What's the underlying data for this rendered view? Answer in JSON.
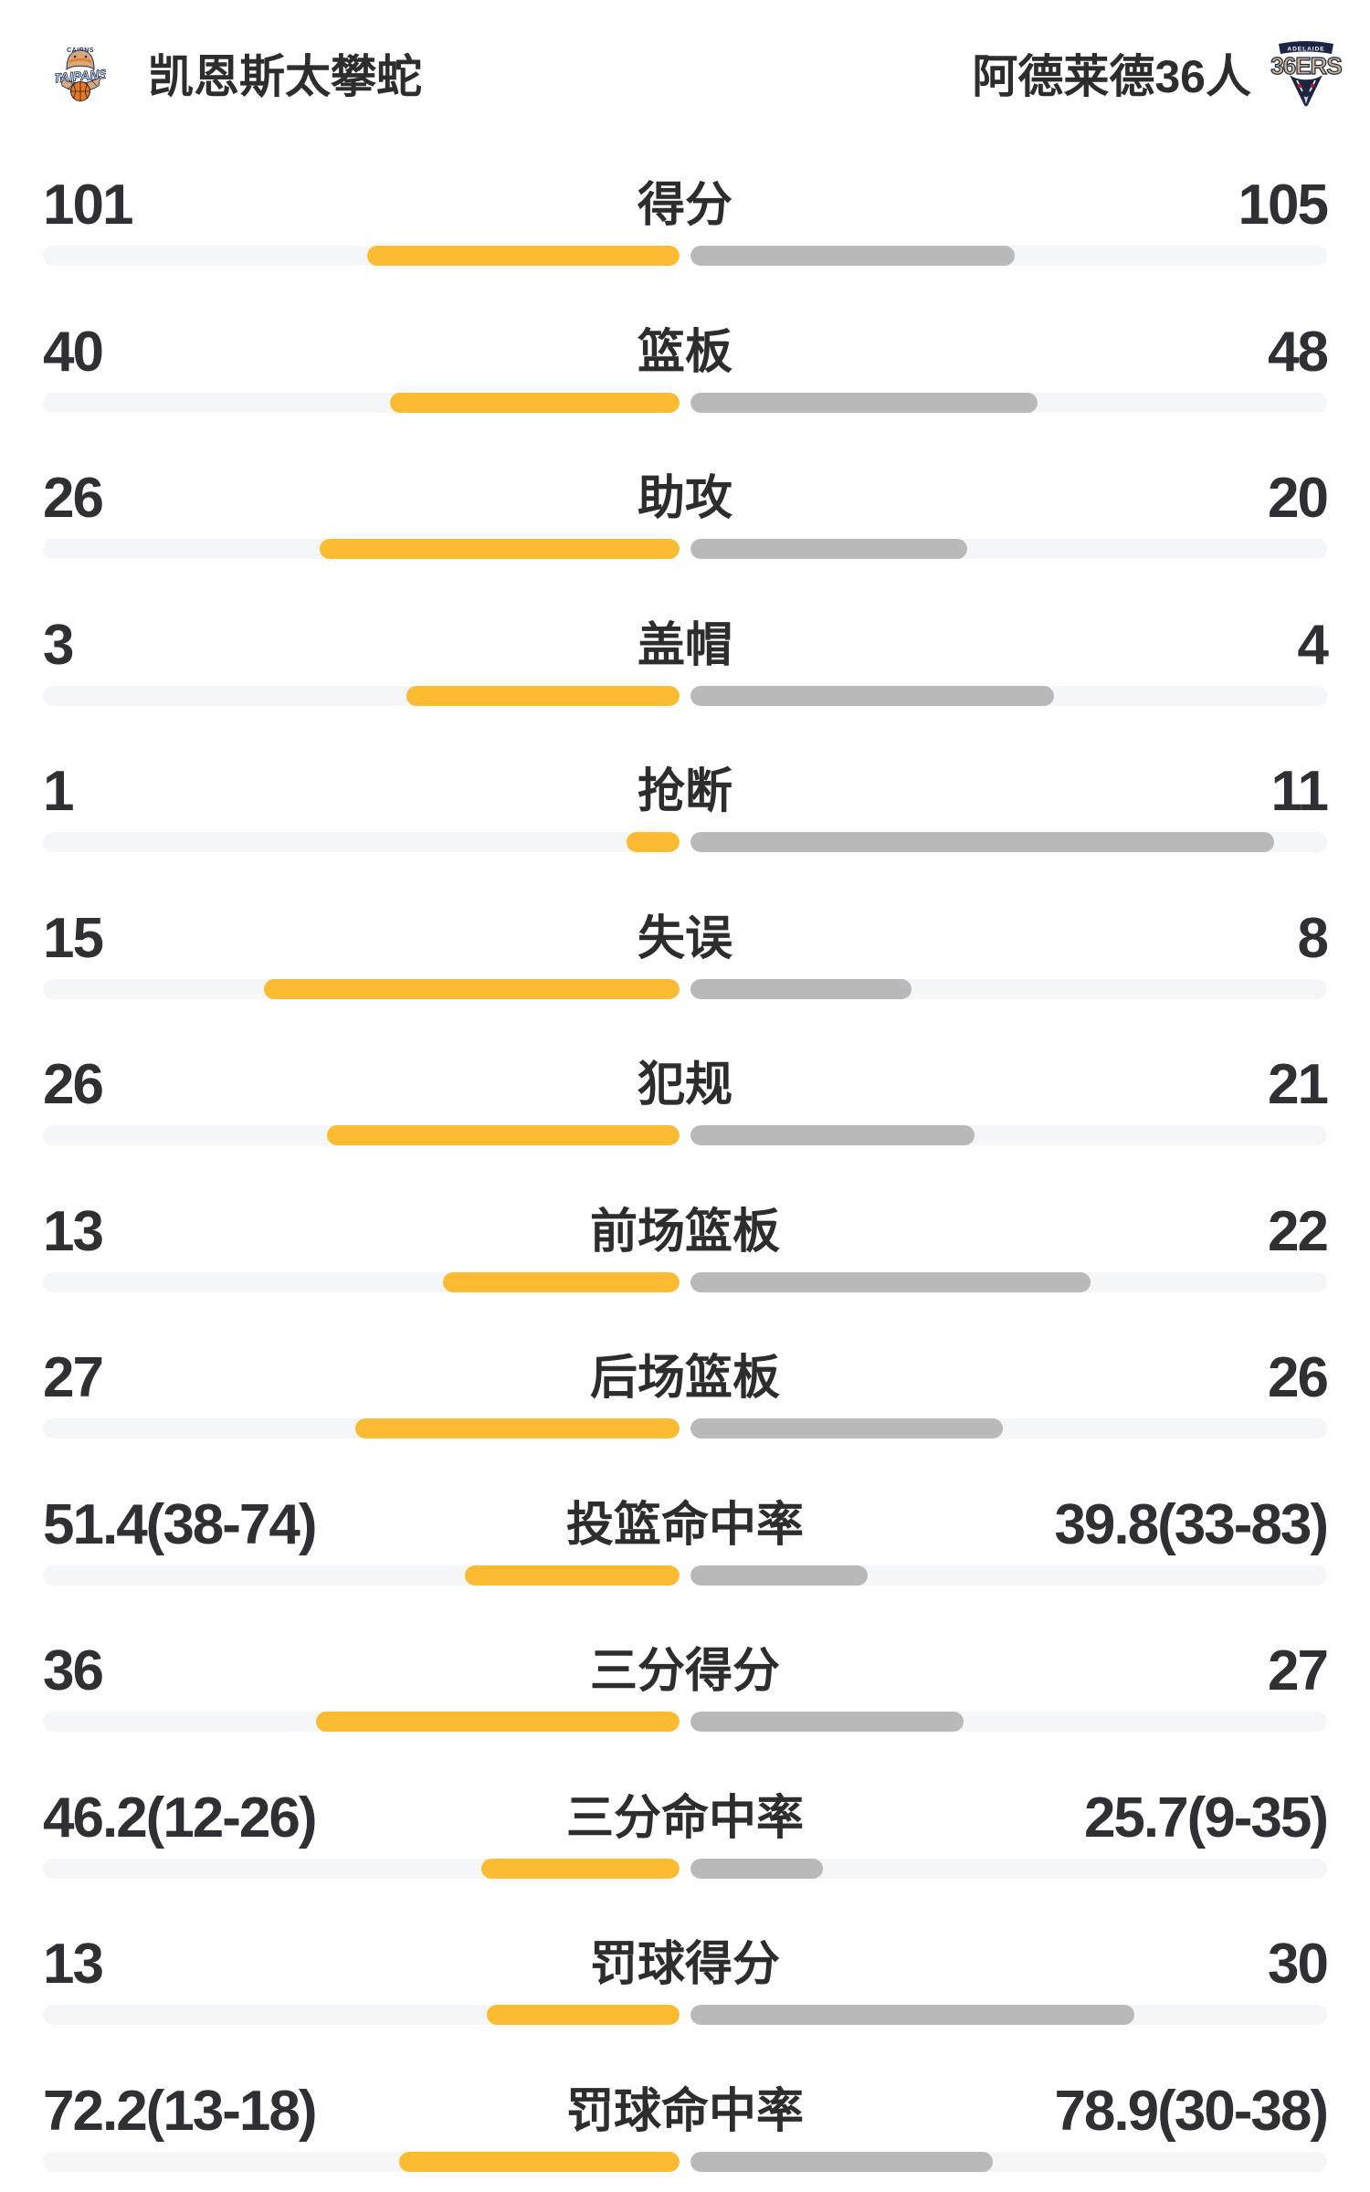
{
  "header": {
    "home_team": {
      "name": "凯恩斯太攀蛇",
      "logo_text_top": "CAIRNS",
      "logo_text_main": "TAIPANS"
    },
    "away_team": {
      "name": "阿德莱德36人",
      "logo_text_top": "ADELAIDE",
      "logo_text_main": "36ERS"
    }
  },
  "colors": {
    "home_bar": "#FBBC34",
    "away_bar": "#B9B9B9",
    "bar_track": "#F5F6F8",
    "text": "#2D2D2D",
    "background": "#FFFFFF",
    "taipans_navy": "#1B2F5E",
    "taipans_orange": "#E87722",
    "taipans_tan": "#D9A97C",
    "sixers_navy": "#1D2545",
    "sixers_gold": "#C9B38C",
    "sixers_red": "#C8102E"
  },
  "chart_data": {
    "type": "bar",
    "orientation": "horizontal-diverging",
    "legend_position": "none",
    "grid": false,
    "teams": [
      "凯恩斯太攀蛇",
      "阿德莱德36人"
    ],
    "rows": [
      {
        "label": "得分",
        "left": "101",
        "right": "105",
        "left_value": 101,
        "right_value": 105,
        "scale": "count"
      },
      {
        "label": "篮板",
        "left": "40",
        "right": "48",
        "left_value": 40,
        "right_value": 48,
        "scale": "count"
      },
      {
        "label": "助攻",
        "left": "26",
        "right": "20",
        "left_value": 26,
        "right_value": 20,
        "scale": "count"
      },
      {
        "label": "盖帽",
        "left": "3",
        "right": "4",
        "left_value": 3,
        "right_value": 4,
        "scale": "count"
      },
      {
        "label": "抢断",
        "left": "1",
        "right": "11",
        "left_value": 1,
        "right_value": 11,
        "scale": "count"
      },
      {
        "label": "失误",
        "left": "15",
        "right": "8",
        "left_value": 15,
        "right_value": 8,
        "scale": "count"
      },
      {
        "label": "犯规",
        "left": "26",
        "right": "21",
        "left_value": 26,
        "right_value": 21,
        "scale": "count"
      },
      {
        "label": "前场篮板",
        "left": "13",
        "right": "22",
        "left_value": 13,
        "right_value": 22,
        "scale": "count"
      },
      {
        "label": "后场篮板",
        "left": "27",
        "right": "26",
        "left_value": 27,
        "right_value": 26,
        "scale": "count"
      },
      {
        "label": "投篮命中率",
        "left": "51.4(38-74)",
        "right": "39.8(33-83)",
        "left_value": 51.4,
        "right_value": 39.8,
        "scale": "percent"
      },
      {
        "label": "三分得分",
        "left": "36",
        "right": "27",
        "left_value": 36,
        "right_value": 27,
        "scale": "count"
      },
      {
        "label": "三分命中率",
        "left": "46.2(12-26)",
        "right": "25.7(9-35)",
        "left_value": 46.2,
        "right_value": 25.7,
        "scale": "percent"
      },
      {
        "label": "罚球得分",
        "left": "13",
        "right": "30",
        "left_value": 13,
        "right_value": 30,
        "scale": "count"
      },
      {
        "label": "罚球命中率",
        "left": "72.2(13-18)",
        "right": "78.9(30-38)",
        "left_value": 72.2,
        "right_value": 78.9,
        "scale": "percent"
      }
    ]
  }
}
